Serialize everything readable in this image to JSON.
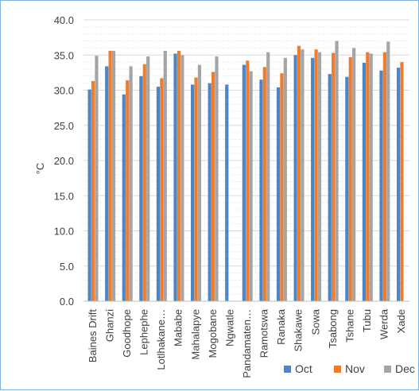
{
  "chart_data": {
    "type": "bar",
    "title": "",
    "xlabel": "",
    "ylabel": "°C",
    "ylim": [
      0,
      40
    ],
    "y_ticks": [
      "0.0",
      "5.0",
      "10.0",
      "15.0",
      "20.0",
      "25.0",
      "30.0",
      "35.0",
      "40.0"
    ],
    "grid": true,
    "legend_position": "bottom-right",
    "categories": [
      "Baines Drift",
      "Ghanzi",
      "Goodhope",
      "Lephephe",
      "Lotlhakane…",
      "Mababe",
      "Mahalapye",
      "Mogobane",
      "Ngwatle",
      "Pandamaten…",
      "Ramotswa",
      "Ranaka",
      "Shakawe",
      "Sowa",
      "Tsabong",
      "Tshane",
      "Tubu",
      "Werda",
      "Xade"
    ],
    "series": [
      {
        "name": "Oct",
        "color": "#4a86c8",
        "values": [
          30.1,
          33.4,
          29.4,
          32.0,
          30.5,
          35.2,
          30.8,
          31.0,
          30.8,
          33.6,
          31.5,
          30.4,
          35.0,
          34.6,
          32.3,
          31.9,
          33.9,
          32.8,
          33.2
        ]
      },
      {
        "name": "Nov",
        "color": "#ed7d31",
        "values": [
          31.3,
          35.6,
          31.4,
          33.7,
          31.7,
          35.6,
          31.8,
          32.6,
          null,
          34.2,
          33.3,
          32.4,
          36.3,
          35.8,
          35.3,
          34.7,
          35.4,
          35.4,
          34.0
        ]
      },
      {
        "name": "Dec",
        "color": "#a5a5a5",
        "values": [
          34.9,
          35.6,
          33.4,
          34.8,
          35.6,
          35.0,
          33.6,
          34.8,
          null,
          32.7,
          35.4,
          34.6,
          35.8,
          35.4,
          37.0,
          36.0,
          35.2,
          36.9,
          null
        ]
      }
    ]
  }
}
